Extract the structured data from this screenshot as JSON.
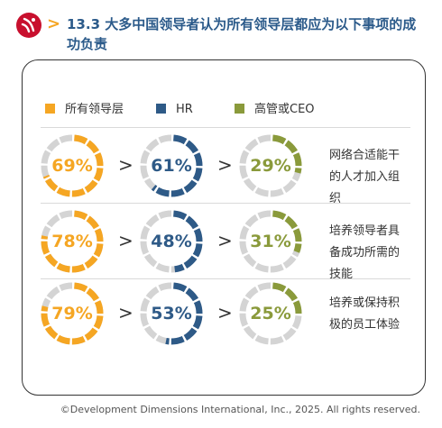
{
  "header": {
    "title": "13.3 大多中国领导者认为所有领导层都应为以下事项的成功负责",
    "accent": "#c8102e",
    "chevron_color": "#f5a623"
  },
  "chart_data": {
    "type": "donut",
    "series": [
      {
        "name": "所有领导层",
        "color": "#f5a623"
      },
      {
        "name": "HR",
        "color": "#2e5a87"
      },
      {
        "name": "高管或CEO",
        "color": "#8a9a3b"
      }
    ],
    "track_color": "#d4d4d4",
    "rows": [
      {
        "label": "网络合适能干的人才加入组织",
        "values": [
          69,
          61,
          29
        ]
      },
      {
        "label": "培养领导者具备成功所需的技能",
        "values": [
          78,
          48,
          31
        ]
      },
      {
        "label": "培养或保持积极的员工体验",
        "values": [
          79,
          53,
          25
        ]
      }
    ],
    "comparator": ">"
  },
  "footer": {
    "copyright": "©Development Dimensions International, Inc., 2025. All rights reserved."
  }
}
